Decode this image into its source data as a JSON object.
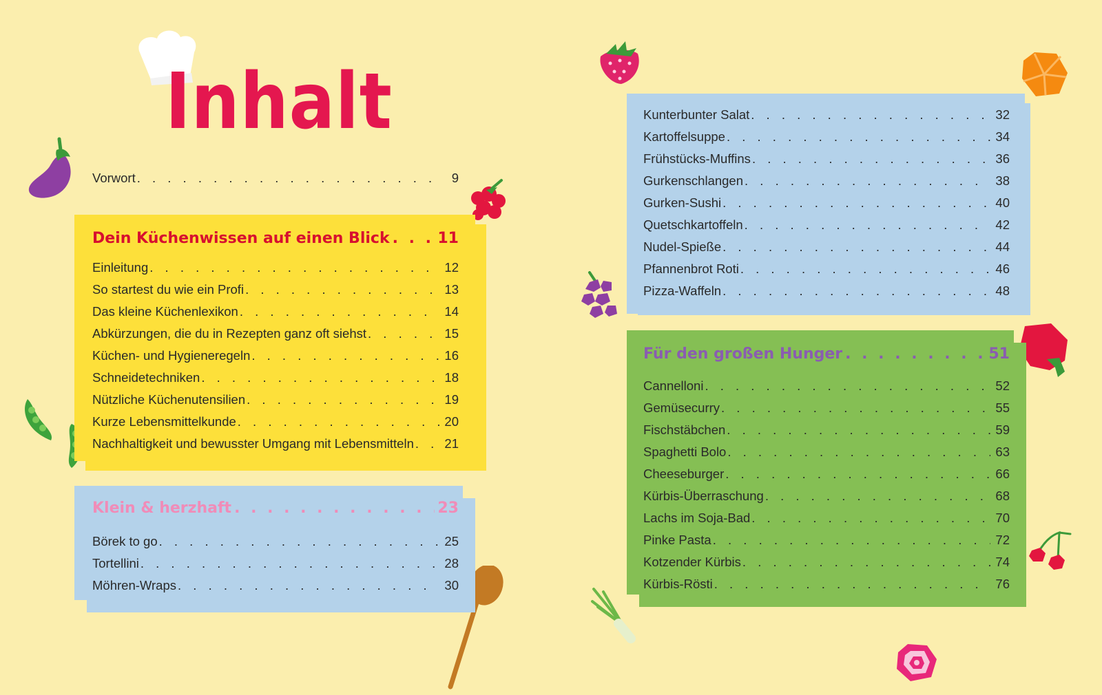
{
  "title": "Inhalt",
  "colors": {
    "background": "#fbeeae",
    "title": "#e4174f",
    "yellow_panel": "#fde03a",
    "blue_panel": "#b4d2ea",
    "green_panel": "#85bf54",
    "yellow_heading": "#d7102f",
    "blue_heading": "#f08cb8",
    "green_heading": "#8a5db0"
  },
  "intro": {
    "label": "Vorwort",
    "page": "9"
  },
  "sections": {
    "kuechenwissen": {
      "heading": "Dein Küchenwissen auf einen Blick",
      "page": "11",
      "items": [
        {
          "label": "Einleitung",
          "page": "12"
        },
        {
          "label": "So startest du wie ein Profi",
          "page": "13"
        },
        {
          "label": "Das kleine Küchenlexikon",
          "page": "14"
        },
        {
          "label": "Abkürzungen, die du in Rezepten ganz oft siehst",
          "page": "15"
        },
        {
          "label": "Küchen- und Hygieneregeln",
          "page": "16"
        },
        {
          "label": "Schneidetechniken",
          "page": "18"
        },
        {
          "label": "Nützliche Küchenutensilien",
          "page": "19"
        },
        {
          "label": "Kurze Lebensmittelkunde",
          "page": "20"
        },
        {
          "label": "Nachhaltigkeit und bewusster Umgang mit Lebensmitteln",
          "page": "21"
        }
      ]
    },
    "klein": {
      "heading": "Klein & herzhaft",
      "page": "23",
      "items": [
        {
          "label": "Börek to go",
          "page": "25"
        },
        {
          "label": "Tortellini",
          "page": "28"
        },
        {
          "label": "Möhren-Wraps",
          "page": "30"
        }
      ]
    },
    "snacks": {
      "items": [
        {
          "label": "Kunterbunter Salat",
          "page": "32"
        },
        {
          "label": "Kartoffelsuppe",
          "page": "34"
        },
        {
          "label": "Frühstücks-Muffins",
          "page": "36"
        },
        {
          "label": "Gurkenschlangen",
          "page": "38"
        },
        {
          "label": "Gurken-Sushi",
          "page": "40"
        },
        {
          "label": "Quetschkartoffeln",
          "page": "42"
        },
        {
          "label": "Nudel-Spieße",
          "page": "44"
        },
        {
          "label": "Pfannenbrot Roti",
          "page": "46"
        },
        {
          "label": "Pizza-Waffeln",
          "page": "48"
        }
      ]
    },
    "hunger": {
      "heading": "Für den großen Hunger",
      "page": "51",
      "items": [
        {
          "label": "Cannelloni",
          "page": "52"
        },
        {
          "label": "Gemüsecurry",
          "page": "55"
        },
        {
          "label": "Fischstäbchen",
          "page": "59"
        },
        {
          "label": "Spaghetti Bolo",
          "page": "63"
        },
        {
          "label": "Cheeseburger",
          "page": "66"
        },
        {
          "label": "Kürbis-Überraschung",
          "page": "68"
        },
        {
          "label": "Lachs im Soja-Bad",
          "page": "70"
        },
        {
          "label": "Pinke Pasta",
          "page": "72"
        },
        {
          "label": "Kotzender Kürbis",
          "page": "74"
        },
        {
          "label": "Kürbis-Rösti",
          "page": "76"
        }
      ]
    }
  },
  "decorations": [
    "chef-hat-icon",
    "eggplant-icon",
    "raspberry-icon",
    "pea-pod-icon",
    "wooden-spoon-icon",
    "strawberry-icon",
    "orange-slice-icon",
    "grapes-icon",
    "bell-pepper-icon",
    "spring-onion-icon",
    "cherries-icon",
    "beet-slice-icon"
  ]
}
